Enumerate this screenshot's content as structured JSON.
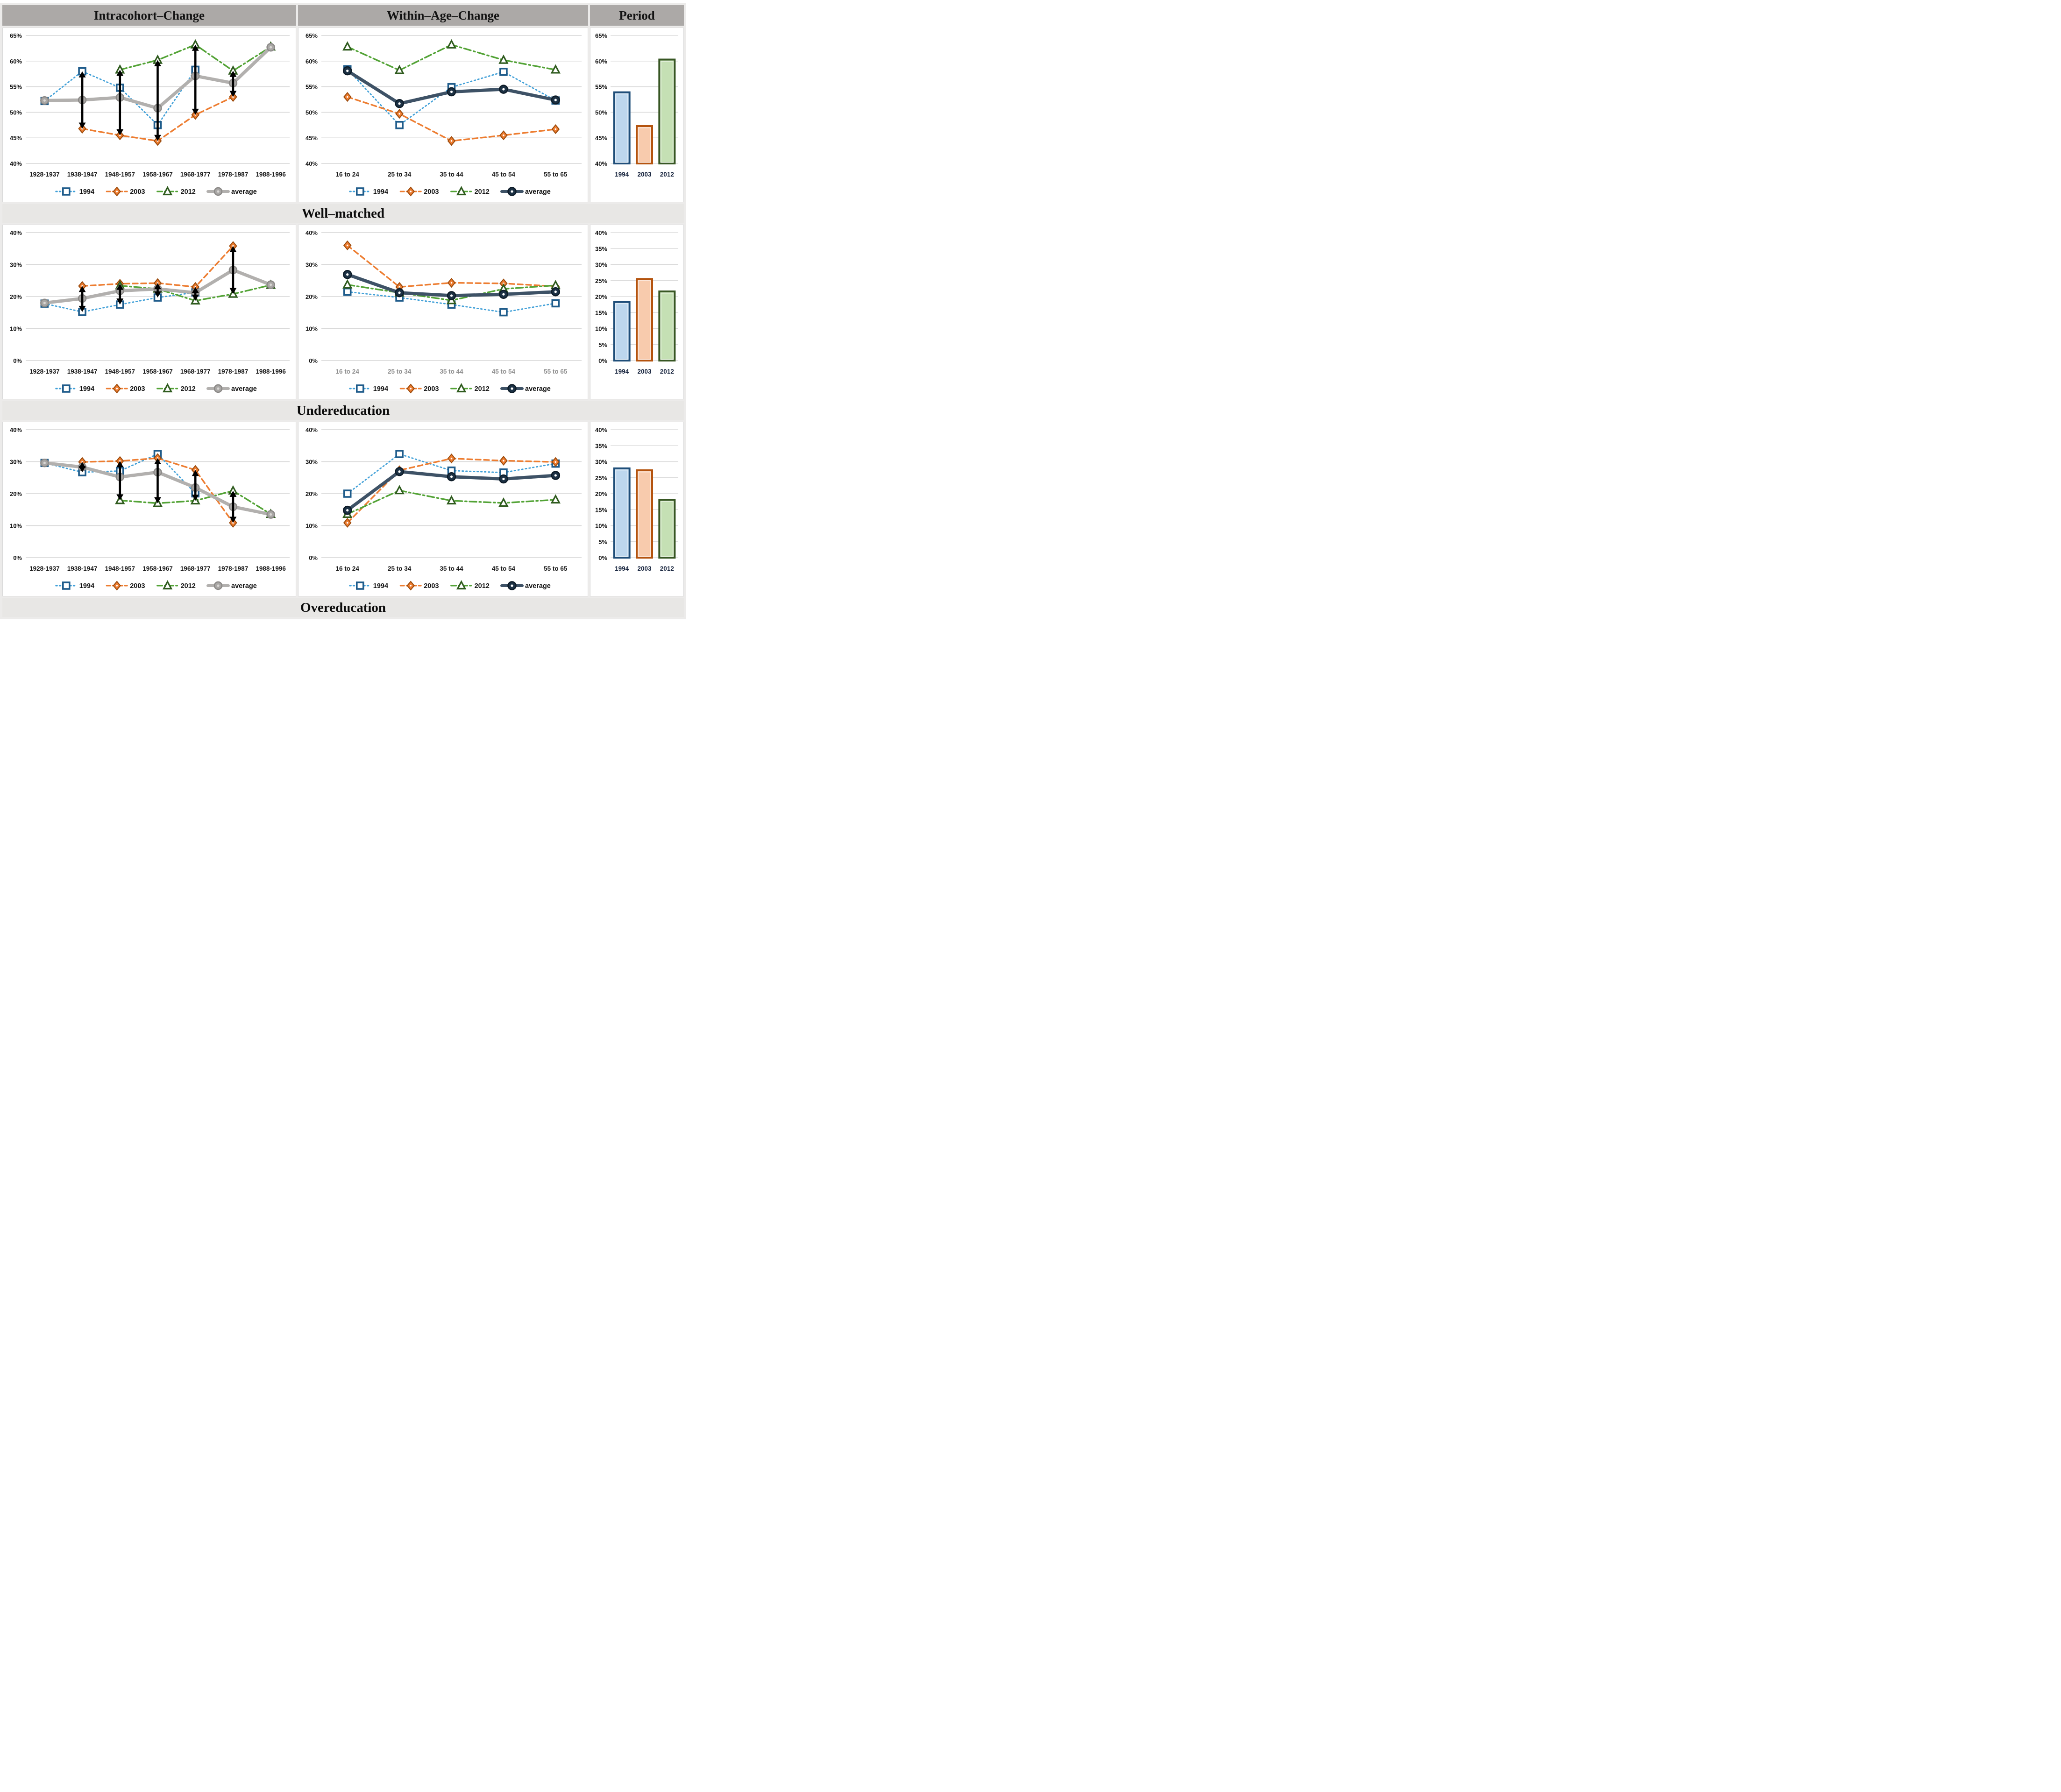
{
  "header": {
    "col1": "Intracohort–Change",
    "col2": "Within–Age–Change",
    "col3": "Period"
  },
  "row_labels": [
    "Well–matched",
    "Undereducation",
    "Overeducation"
  ],
  "colors": {
    "header_bg": "#aca9a7",
    "band_bg": "#e8e7e5",
    "gridline": "#d6d6d6",
    "arrow": "#000000",
    "series_1994": "#41a0d8",
    "series_2003": "#ed7d31",
    "series_2012": "#53a336",
    "series_average_gray": "#b2b0ae",
    "series_average_navy": "#3e5266",
    "bar_1994_fill": "#bdd7ee",
    "bar_1994_stroke": "#1f4e79",
    "bar_2003_fill": "#f8cbad",
    "bar_2003_stroke": "#b4530e",
    "bar_2012_fill": "#c5e0b4",
    "bar_2012_stroke": "#375623"
  },
  "chart_data": [
    {
      "type": "line",
      "section": "Well-matched",
      "panel": "Intracohort-Change",
      "ylim": [
        40,
        65
      ],
      "ystep": 5,
      "x_label_muted": false,
      "categories": [
        "1928-1937",
        "1938-1947",
        "1948-1957",
        "1958-1967",
        "1968-1977",
        "1978-1987",
        "1988-1996"
      ],
      "series": [
        {
          "name": "1994",
          "color": "#41a0d8",
          "dash": "dot",
          "width": 2.8,
          "marker": "square",
          "marker_stroke": "#1f5c8b",
          "values": [
            52.2,
            58.0,
            54.8,
            47.5,
            58.3,
            null,
            null
          ]
        },
        {
          "name": "2003",
          "color": "#ed7d31",
          "dash": "dash",
          "width": 3.4,
          "marker": "diamond",
          "marker_stroke": "#9c4a0b",
          "values": [
            null,
            46.8,
            45.5,
            44.4,
            49.5,
            53.0,
            null
          ]
        },
        {
          "name": "2012",
          "color": "#53a336",
          "dash": "dashdot",
          "width": 3.4,
          "marker": "triangle",
          "marker_stroke": "#2f5b1e",
          "values": [
            null,
            null,
            58.3,
            60.2,
            63.2,
            58.1,
            62.8
          ]
        },
        {
          "name": "average",
          "color": "#b2b0ae",
          "dash": "solid",
          "width": 7,
          "marker": "circle-gray",
          "marker_stroke": "#8b8987",
          "values": [
            52.3,
            52.4,
            52.9,
            50.8,
            57.1,
            55.7,
            62.7
          ]
        }
      ],
      "arrows": [
        {
          "i": 1,
          "from": 46.8,
          "to": 58.0
        },
        {
          "i": 2,
          "from": 45.5,
          "to": 58.3
        },
        {
          "i": 3,
          "from": 44.4,
          "to": 60.2
        },
        {
          "i": 4,
          "from": 49.5,
          "to": 63.2
        },
        {
          "i": 5,
          "from": 53.0,
          "to": 58.1
        }
      ]
    },
    {
      "type": "line",
      "section": "Well-matched",
      "panel": "Within-Age-Change",
      "ylim": [
        40,
        65
      ],
      "ystep": 5,
      "x_label_muted": false,
      "categories": [
        "16 to 24",
        "25 to 34",
        "35 to 44",
        "45 to 54",
        "55 to 65"
      ],
      "series": [
        {
          "name": "1994",
          "color": "#41a0d8",
          "dash": "dot",
          "width": 2.8,
          "marker": "square",
          "marker_stroke": "#1f5c8b",
          "values": [
            58.4,
            47.5,
            54.9,
            57.9,
            52.3
          ]
        },
        {
          "name": "2003",
          "color": "#ed7d31",
          "dash": "dash",
          "width": 3.4,
          "marker": "diamond",
          "marker_stroke": "#9c4a0b",
          "values": [
            53.0,
            49.7,
            44.4,
            45.5,
            46.7
          ]
        },
        {
          "name": "2012",
          "color": "#53a336",
          "dash": "dashdot",
          "width": 3.4,
          "marker": "triangle",
          "marker_stroke": "#2f5b1e",
          "values": [
            62.8,
            58.2,
            63.2,
            60.2,
            58.3
          ]
        },
        {
          "name": "average",
          "color": "#3e5266",
          "dash": "solid",
          "width": 7,
          "marker": "circle-navy",
          "marker_stroke": "#0d1b27",
          "values": [
            58.1,
            51.7,
            54.0,
            54.5,
            52.4
          ]
        }
      ],
      "arrows": []
    },
    {
      "type": "bar",
      "section": "Well-matched",
      "panel": "Period",
      "ylim": [
        40,
        65
      ],
      "ystep": 5,
      "categories": [
        "1994",
        "2003",
        "2012"
      ],
      "values": [
        53.9,
        47.3,
        60.3
      ],
      "fills": [
        "#bdd7ee",
        "#f8cbad",
        "#c5e0b4"
      ],
      "strokes": [
        "#1f4e79",
        "#b4530e",
        "#375623"
      ]
    },
    {
      "type": "line",
      "section": "Undereducation",
      "panel": "Intracohort-Change",
      "ylim": [
        0,
        40
      ],
      "ystep": 10,
      "x_label_muted": false,
      "categories": [
        "1928-1937",
        "1938-1947",
        "1948-1957",
        "1958-1967",
        "1968-1977",
        "1978-1987",
        "1988-1996"
      ],
      "series": [
        {
          "name": "1994",
          "color": "#41a0d8",
          "dash": "dot",
          "width": 2.8,
          "marker": "square",
          "marker_stroke": "#1f5c8b",
          "values": [
            17.8,
            15.2,
            17.5,
            19.7,
            21.3,
            null,
            null
          ]
        },
        {
          "name": "2003",
          "color": "#ed7d31",
          "dash": "dash",
          "width": 3.4,
          "marker": "diamond",
          "marker_stroke": "#9c4a0b",
          "values": [
            null,
            23.3,
            24.0,
            24.2,
            23.0,
            35.8,
            null
          ]
        },
        {
          "name": "2012",
          "color": "#53a336",
          "dash": "dashdot",
          "width": 3.4,
          "marker": "triangle",
          "marker_stroke": "#2f5b1e",
          "values": [
            null,
            null,
            23.4,
            22.4,
            18.7,
            20.8,
            23.6
          ]
        },
        {
          "name": "average",
          "color": "#b2b0ae",
          "dash": "solid",
          "width": 7,
          "marker": "circle-gray",
          "marker_stroke": "#8b8987",
          "values": [
            18.0,
            19.4,
            21.8,
            22.4,
            21.2,
            28.3,
            23.7
          ]
        }
      ],
      "arrows": [
        {
          "i": 1,
          "from": 15.2,
          "to": 23.3
        },
        {
          "i": 2,
          "from": 17.5,
          "to": 24.0
        },
        {
          "i": 3,
          "from": 19.7,
          "to": 24.2
        },
        {
          "i": 4,
          "from": 18.7,
          "to": 23.0
        },
        {
          "i": 5,
          "from": 20.8,
          "to": 35.8
        }
      ]
    },
    {
      "type": "line",
      "section": "Undereducation",
      "panel": "Within-Age-Change",
      "ylim": [
        0,
        40
      ],
      "ystep": 10,
      "x_label_muted": true,
      "categories": [
        "16 to 24",
        "25 to 34",
        "35 to 44",
        "45 to 54",
        "55 to 65"
      ],
      "series": [
        {
          "name": "1994",
          "color": "#41a0d8",
          "dash": "dot",
          "width": 2.8,
          "marker": "square",
          "marker_stroke": "#1f5c8b",
          "values": [
            21.5,
            19.7,
            17.5,
            15.1,
            17.9
          ]
        },
        {
          "name": "2003",
          "color": "#ed7d31",
          "dash": "dash",
          "width": 3.4,
          "marker": "diamond",
          "marker_stroke": "#9c4a0b",
          "values": [
            36.0,
            23.0,
            24.3,
            24.1,
            23.2
          ]
        },
        {
          "name": "2012",
          "color": "#53a336",
          "dash": "dashdot",
          "width": 3.4,
          "marker": "triangle",
          "marker_stroke": "#2f5b1e",
          "values": [
            23.7,
            21.2,
            18.8,
            22.4,
            23.5
          ]
        },
        {
          "name": "average",
          "color": "#3e5266",
          "dash": "solid",
          "width": 7,
          "marker": "circle-navy",
          "marker_stroke": "#0d1b27",
          "values": [
            26.9,
            21.2,
            20.3,
            20.7,
            21.5
          ]
        }
      ],
      "arrows": []
    },
    {
      "type": "bar",
      "section": "Undereducation",
      "panel": "Period",
      "ylim": [
        0,
        40
      ],
      "ystep": 5,
      "categories": [
        "1994",
        "2003",
        "2012"
      ],
      "values": [
        18.3,
        25.5,
        21.6
      ],
      "fills": [
        "#bdd7ee",
        "#f8cbad",
        "#c5e0b4"
      ],
      "strokes": [
        "#1f4e79",
        "#b4530e",
        "#375623"
      ]
    },
    {
      "type": "line",
      "section": "Overeducation",
      "panel": "Intracohort-Change",
      "ylim": [
        0,
        40
      ],
      "ystep": 10,
      "x_label_muted": false,
      "categories": [
        "1928-1937",
        "1938-1947",
        "1948-1957",
        "1958-1967",
        "1968-1977",
        "1978-1987",
        "1988-1996"
      ],
      "series": [
        {
          "name": "1994",
          "color": "#41a0d8",
          "dash": "dot",
          "width": 2.8,
          "marker": "square",
          "marker_stroke": "#1f5c8b",
          "values": [
            29.6,
            26.7,
            27.1,
            32.4,
            20.1,
            null,
            null
          ]
        },
        {
          "name": "2003",
          "color": "#ed7d31",
          "dash": "dash",
          "width": 3.4,
          "marker": "diamond",
          "marker_stroke": "#9c4a0b",
          "values": [
            null,
            29.9,
            30.2,
            31.1,
            27.4,
            10.9,
            null
          ]
        },
        {
          "name": "2012",
          "color": "#53a336",
          "dash": "dashdot",
          "width": 3.4,
          "marker": "triangle",
          "marker_stroke": "#2f5b1e",
          "values": [
            null,
            null,
            17.9,
            17.0,
            17.8,
            20.9,
            13.6
          ]
        },
        {
          "name": "average",
          "color": "#b2b0ae",
          "dash": "solid",
          "width": 7,
          "marker": "circle-gray",
          "marker_stroke": "#8b8987",
          "values": [
            29.6,
            28.3,
            25.2,
            26.7,
            21.9,
            15.9,
            13.5
          ]
        }
      ],
      "arrows": [
        {
          "i": 1,
          "from": 26.7,
          "to": 29.9
        },
        {
          "i": 2,
          "from": 17.9,
          "to": 30.2
        },
        {
          "i": 3,
          "from": 17.0,
          "to": 31.1
        },
        {
          "i": 4,
          "from": 17.8,
          "to": 27.4
        },
        {
          "i": 5,
          "from": 10.9,
          "to": 20.9
        }
      ]
    },
    {
      "type": "line",
      "section": "Overeducation",
      "panel": "Within-Age-Change",
      "ylim": [
        0,
        40
      ],
      "ystep": 10,
      "x_label_muted": false,
      "categories": [
        "16 to 24",
        "25 to 34",
        "35 to 44",
        "45 to 54",
        "55 to 65"
      ],
      "series": [
        {
          "name": "1994",
          "color": "#41a0d8",
          "dash": "dot",
          "width": 2.8,
          "marker": "square",
          "marker_stroke": "#1f5c8b",
          "values": [
            20.0,
            32.4,
            27.2,
            26.6,
            29.4
          ]
        },
        {
          "name": "2003",
          "color": "#ed7d31",
          "dash": "dash",
          "width": 3.4,
          "marker": "diamond",
          "marker_stroke": "#9c4a0b",
          "values": [
            10.9,
            27.3,
            31.0,
            30.3,
            29.9
          ]
        },
        {
          "name": "2012",
          "color": "#53a336",
          "dash": "dashdot",
          "width": 3.4,
          "marker": "triangle",
          "marker_stroke": "#2f5b1e",
          "values": [
            13.6,
            21.0,
            17.8,
            17.1,
            18.1
          ]
        },
        {
          "name": "average",
          "color": "#3e5266",
          "dash": "solid",
          "width": 7,
          "marker": "circle-navy",
          "marker_stroke": "#0d1b27",
          "values": [
            14.8,
            26.9,
            25.3,
            24.6,
            25.7
          ]
        }
      ],
      "arrows": []
    },
    {
      "type": "bar",
      "section": "Overeducation",
      "panel": "Period",
      "ylim": [
        0,
        40
      ],
      "ystep": 5,
      "categories": [
        "1994",
        "2003",
        "2012"
      ],
      "values": [
        27.9,
        27.3,
        18.1
      ],
      "fills": [
        "#bdd7ee",
        "#f8cbad",
        "#c5e0b4"
      ],
      "strokes": [
        "#1f4e79",
        "#b4530e",
        "#375623"
      ]
    }
  ]
}
